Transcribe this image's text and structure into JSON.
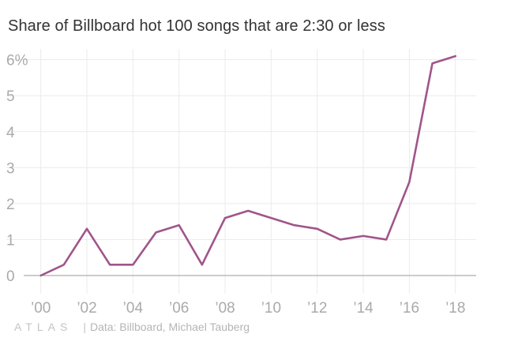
{
  "title": "Share of Billboard hot 100 songs that are 2:30 or less",
  "chart_data": {
    "type": "line",
    "title": "Share of Billboard hot 100 songs that are 2:30 or less",
    "xlabel": "",
    "ylabel": "",
    "x": [
      2000,
      2001,
      2002,
      2003,
      2004,
      2005,
      2006,
      2007,
      2008,
      2009,
      2010,
      2011,
      2012,
      2013,
      2014,
      2015,
      2016,
      2017,
      2018
    ],
    "series": [
      {
        "name": "Share of songs 2:30 or less (%)",
        "color": "#a0558a",
        "values": [
          0,
          0.3,
          1.3,
          0.3,
          0.3,
          1.2,
          1.4,
          0.3,
          1.6,
          1.8,
          1.6,
          1.4,
          1.3,
          1.0,
          1.1,
          1.0,
          2.6,
          5.9,
          6.1
        ]
      }
    ],
    "xlim": [
      1999.6,
      2018.9
    ],
    "ylim": [
      0,
      6.3
    ],
    "x_ticks": [
      2000,
      2002,
      2004,
      2006,
      2008,
      2010,
      2012,
      2014,
      2016,
      2018
    ],
    "x_tick_labels": [
      "’00",
      "’02",
      "’04",
      "’06",
      "’08",
      "’10",
      "’12",
      "’14",
      "’16",
      "’18"
    ],
    "y_ticks": [
      0,
      1,
      2,
      3,
      4,
      5,
      6
    ],
    "y_tick_labels": [
      "0",
      "1",
      "2",
      "3",
      "4",
      "5",
      "6%"
    ],
    "grid": true,
    "legend": "none"
  },
  "footer": {
    "logo_text": "ATLAS",
    "separator": "|",
    "source": "Data: Billboard, Michael Tauberg"
  }
}
